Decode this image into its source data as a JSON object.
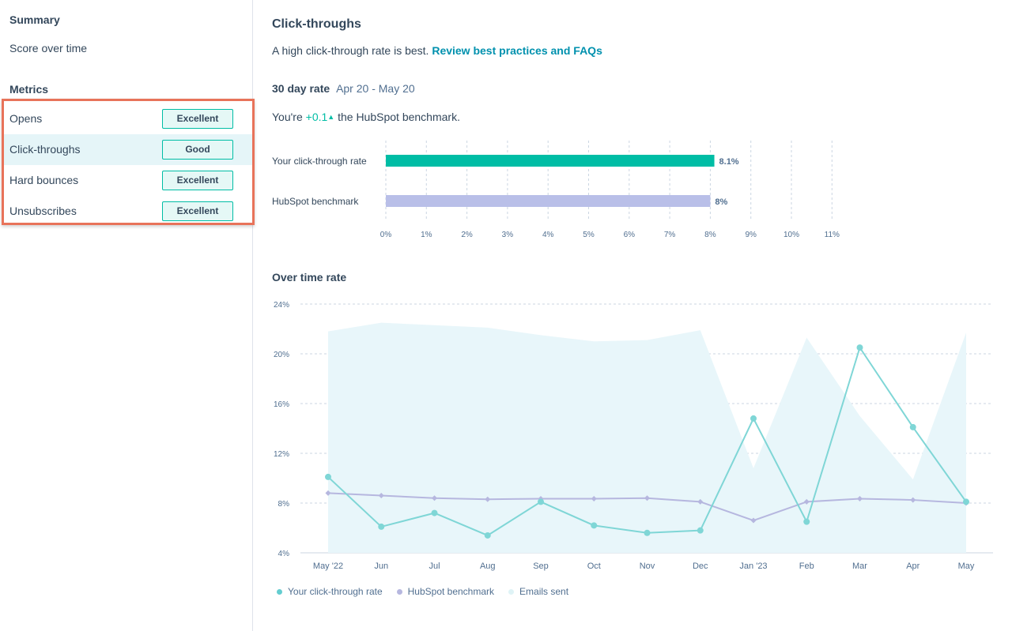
{
  "sidebar": {
    "summary_heading": "Summary",
    "score_over_time": "Score over time",
    "metrics_heading": "Metrics",
    "metrics": [
      {
        "label": "Opens",
        "rating": "Excellent"
      },
      {
        "label": "Click-throughs",
        "rating": "Good"
      },
      {
        "label": "Hard bounces",
        "rating": "Excellent"
      },
      {
        "label": "Unsubscribes",
        "rating": "Excellent"
      }
    ]
  },
  "main": {
    "title": "Click-throughs",
    "description": "A high click-through rate is best.",
    "link": "Review best practices and FAQs",
    "rate_label": "30 day rate",
    "date_range": "Apr 20 - May 20",
    "bench_prefix": "You're",
    "bench_delta": "+0.1",
    "bench_suffix": "the HubSpot benchmark.",
    "over_time_heading": "Over time rate"
  },
  "colors": {
    "teal": "#00bda5",
    "lavender": "#b9bfe8",
    "line_teal": "#7fd6d6",
    "line_lavender": "#b6b7df",
    "area": "#e8f6fa"
  },
  "chart_data": [
    {
      "type": "bar",
      "orientation": "horizontal",
      "categories": [
        "Your click-through rate",
        "HubSpot benchmark"
      ],
      "values": [
        8.1,
        8
      ],
      "value_labels": [
        "8.1%",
        "8%"
      ],
      "x_ticks": [
        "0%",
        "1%",
        "2%",
        "3%",
        "4%",
        "5%",
        "6%",
        "7%",
        "8%",
        "9%",
        "10%",
        "11%"
      ],
      "xlim": [
        0,
        11
      ],
      "grid": true
    },
    {
      "type": "line",
      "x": [
        "May '22",
        "Jun",
        "Jul",
        "Aug",
        "Sep",
        "Oct",
        "Nov",
        "Dec",
        "Jan '23",
        "Feb",
        "Mar",
        "Apr",
        "May"
      ],
      "y_ticks": [
        "4%",
        "8%",
        "12%",
        "16%",
        "20%",
        "24%"
      ],
      "ylim": [
        4,
        24
      ],
      "grid": true,
      "legend_position": "bottom-left",
      "series": [
        {
          "name": "Your click-through rate",
          "values": [
            10.1,
            6.1,
            7.2,
            5.4,
            8.1,
            6.2,
            5.6,
            5.8,
            14.8,
            6.5,
            20.5,
            14.1,
            8.1
          ]
        },
        {
          "name": "HubSpot benchmark",
          "values": [
            8.8,
            8.6,
            8.4,
            8.3,
            8.35,
            8.35,
            8.4,
            8.1,
            6.6,
            8.1,
            8.35,
            8.25,
            8.0
          ]
        },
        {
          "name": "Emails sent",
          "type": "area",
          "values": [
            21.8,
            22.5,
            22.3,
            22.1,
            21.5,
            21.0,
            21.1,
            21.9,
            10.8,
            21.3,
            15.0,
            9.9,
            21.7
          ]
        }
      ]
    }
  ]
}
